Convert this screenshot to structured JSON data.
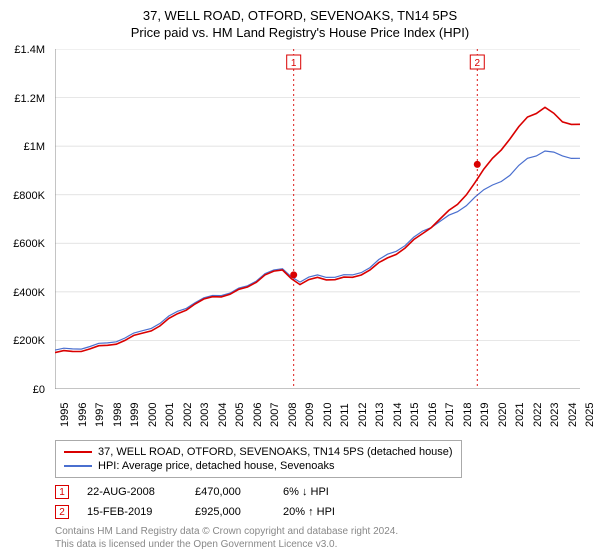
{
  "title": "37, WELL ROAD, OTFORD, SEVENOAKS, TN14 5PS",
  "subtitle": "Price paid vs. HM Land Registry's House Price Index (HPI)",
  "chart": {
    "type": "line",
    "background_color": "#ffffff",
    "grid_color": "#d9d9d9",
    "axis_color": "#888888",
    "x_years": [
      1995,
      1996,
      1997,
      1998,
      1999,
      2000,
      2001,
      2002,
      2003,
      2004,
      2005,
      2006,
      2007,
      2008,
      2009,
      2010,
      2011,
      2012,
      2013,
      2014,
      2015,
      2016,
      2017,
      2018,
      2019,
      2020,
      2021,
      2022,
      2023,
      2024,
      2025
    ],
    "ylim": [
      0,
      1400000
    ],
    "ytick_step": 200000,
    "ytick_labels": [
      "£0",
      "£200K",
      "£400K",
      "£600K",
      "£800K",
      "£1M",
      "£1.2M",
      "£1.4M"
    ],
    "series": [
      {
        "name": "property",
        "label": "37, WELL ROAD, OTFORD, SEVENOAKS, TN14 5PS (detached house)",
        "color": "#d90000",
        "width": 1.6,
        "data": [
          150000,
          155000,
          165000,
          180000,
          200000,
          230000,
          260000,
          310000,
          350000,
          380000,
          390000,
          420000,
          470000,
          490000,
          430000,
          460000,
          450000,
          460000,
          490000,
          540000,
          580000,
          640000,
          700000,
          760000,
          850000,
          950000,
          1030000,
          1120000,
          1160000,
          1100000,
          1090000
        ]
      },
      {
        "name": "hpi",
        "label": "HPI: Average price, detached house, Sevenoaks",
        "color": "#4a6fcf",
        "width": 1.2,
        "data": [
          160000,
          165000,
          175000,
          190000,
          210000,
          240000,
          270000,
          320000,
          355000,
          385000,
          395000,
          425000,
          475000,
          495000,
          440000,
          470000,
          460000,
          470000,
          500000,
          555000,
          590000,
          650000,
          690000,
          730000,
          790000,
          840000,
          880000,
          950000,
          980000,
          960000,
          950000
        ]
      }
    ],
    "sale_markers": [
      {
        "num": "1",
        "year": 2008.64,
        "price": 470000,
        "color": "#d90000"
      },
      {
        "num": "2",
        "year": 2019.13,
        "price": 925000,
        "color": "#d90000"
      }
    ]
  },
  "legend": {
    "items": [
      {
        "color": "#d90000",
        "label": "37, WELL ROAD, OTFORD, SEVENOAKS, TN14 5PS (detached house)"
      },
      {
        "color": "#4a6fcf",
        "label": "HPI: Average price, detached house, Sevenoaks"
      }
    ]
  },
  "sales": [
    {
      "num": "1",
      "color": "#d90000",
      "date": "22-AUG-2008",
      "price": "£470,000",
      "diff": "6% ↓ HPI"
    },
    {
      "num": "2",
      "color": "#d90000",
      "date": "15-FEB-2019",
      "price": "£925,000",
      "diff": "20% ↑ HPI"
    }
  ],
  "footer": {
    "line1": "Contains HM Land Registry data © Crown copyright and database right 2024.",
    "line2": "This data is licensed under the Open Government Licence v3.0."
  }
}
